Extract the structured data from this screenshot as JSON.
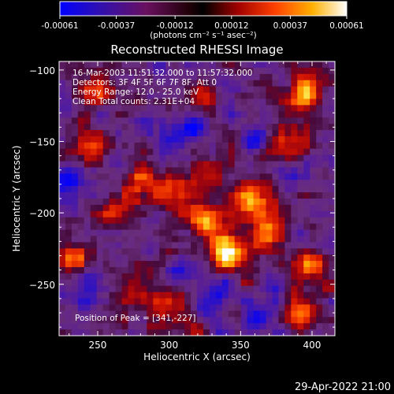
{
  "chart_data": {
    "type": "heatmap",
    "title": "Reconstructed RHESSI Image",
    "xlabel": "Heliocentric X (arcsec)",
    "ylabel": "Heliocentric Y (arcsec)",
    "xlim": [
      223,
      416
    ],
    "ylim": [
      -286,
      -94
    ],
    "xticks": [
      250,
      300,
      350,
      400
    ],
    "yticks": [
      -100,
      -150,
      -200,
      -250
    ],
    "colorbar": {
      "ticks": [
        "-0.00061",
        "-0.00037",
        "-0.00012",
        "0.00012",
        "0.00037",
        "0.00061"
      ],
      "range": [
        -0.00061,
        0.00061
      ],
      "units_label": "(photons cm⁻² s⁻¹ asec⁻²)",
      "colors": [
        "#0000ff",
        "#3a10a0",
        "#6a0a4a",
        "#000000",
        "#a00000",
        "#ff4000",
        "#ffc000",
        "#ffffff"
      ]
    },
    "annotations": [
      "16-Mar-2003 11:51:32.000 to 11:57:32.000",
      "Detectors: 3F 4F 5F 6F 7F 8F, Att 0",
      "Energy Range: 12.0 - 25.0 keV",
      "Clean     Total counts: 2.31E+04"
    ],
    "peak_label": "Position of Peak = [341,-227]",
    "peak_position": [
      341,
      -227
    ],
    "bright_sources": [
      {
        "x": 341,
        "y": -227,
        "w": 1.0
      },
      {
        "x": 355,
        "y": -190,
        "w": 0.8
      },
      {
        "x": 370,
        "y": -208,
        "w": 0.7
      },
      {
        "x": 325,
        "y": -205,
        "w": 0.6
      },
      {
        "x": 395,
        "y": -115,
        "w": 0.7
      },
      {
        "x": 385,
        "y": -150,
        "w": 0.55
      },
      {
        "x": 235,
        "y": -230,
        "w": 0.6
      },
      {
        "x": 260,
        "y": -200,
        "w": 0.55
      },
      {
        "x": 280,
        "y": -175,
        "w": 0.5
      },
      {
        "x": 245,
        "y": -150,
        "w": 0.5
      },
      {
        "x": 250,
        "y": -115,
        "w": 0.45
      },
      {
        "x": 400,
        "y": -240,
        "w": 0.55
      },
      {
        "x": 395,
        "y": -270,
        "w": 0.5
      },
      {
        "x": 300,
        "y": -270,
        "w": 0.45
      },
      {
        "x": 300,
        "y": -185,
        "w": 0.45
      },
      {
        "x": 330,
        "y": -170,
        "w": 0.4
      },
      {
        "x": 320,
        "y": -120,
        "w": 0.35
      },
      {
        "x": 275,
        "y": -255,
        "w": 0.4
      }
    ],
    "negative_regions": [
      {
        "x": 320,
        "y": -140,
        "w": 0.6
      },
      {
        "x": 360,
        "y": -150,
        "w": 0.5
      },
      {
        "x": 230,
        "y": -180,
        "w": 0.55
      },
      {
        "x": 245,
        "y": -250,
        "w": 0.5
      },
      {
        "x": 330,
        "y": -255,
        "w": 0.45
      },
      {
        "x": 360,
        "y": -270,
        "w": 0.5
      },
      {
        "x": 300,
        "y": -150,
        "w": 0.45
      }
    ]
  },
  "footer": {
    "timestamp": "29-Apr-2022 21:00"
  }
}
